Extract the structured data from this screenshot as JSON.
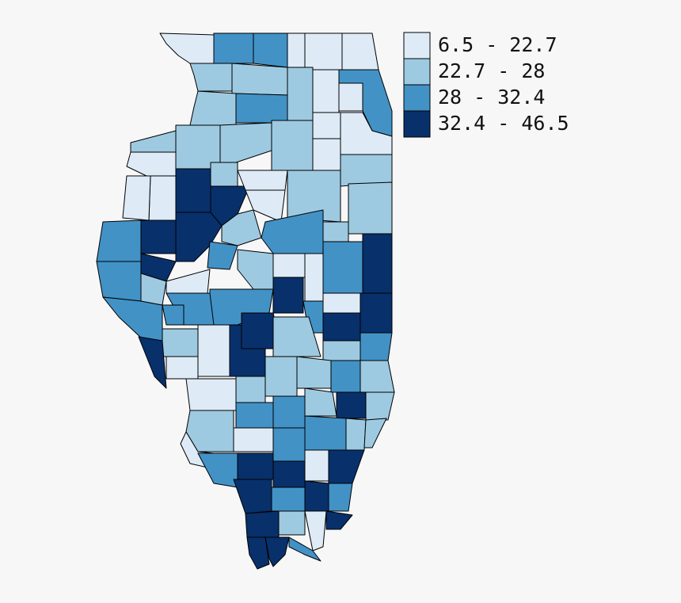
{
  "legend": {
    "entries": [
      {
        "label": "6.5 - 22.7",
        "color": "#deebf7"
      },
      {
        "label": "22.7 - 28",
        "color": "#9ecae1"
      },
      {
        "label": "28 - 32.4",
        "color": "#4292c6"
      },
      {
        "label": "32.4 - 46.5",
        "color": "#08306b"
      }
    ]
  }
}
